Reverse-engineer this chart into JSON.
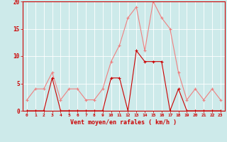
{
  "hours": [
    0,
    1,
    2,
    3,
    4,
    5,
    6,
    7,
    8,
    9,
    10,
    11,
    12,
    13,
    14,
    15,
    16,
    17,
    18,
    19,
    20,
    21,
    22,
    23
  ],
  "wind_mean": [
    0,
    0,
    0,
    6,
    0,
    0,
    0,
    0,
    0,
    0,
    6,
    6,
    0,
    11,
    9,
    9,
    9,
    0,
    4,
    0,
    0,
    0,
    0,
    0
  ],
  "wind_gusts": [
    2,
    4,
    4,
    7,
    2,
    4,
    4,
    2,
    2,
    4,
    9,
    12,
    17,
    19,
    11,
    20,
    17,
    15,
    7,
    2,
    4,
    2,
    4,
    2
  ],
  "bg_color": "#cdeaea",
  "grid_color": "#ffffff",
  "line_mean_color": "#cc0000",
  "line_gust_color": "#f08080",
  "xlabel": "Vent moyen/en rafales ( km/h )",
  "xlabel_color": "#cc0000",
  "tick_color": "#cc0000",
  "spine_color": "#cc0000",
  "ylim": [
    0,
    20
  ],
  "yticks": [
    0,
    5,
    10,
    15,
    20
  ],
  "xticks": [
    0,
    1,
    2,
    3,
    4,
    5,
    6,
    7,
    8,
    9,
    10,
    11,
    12,
    13,
    14,
    15,
    16,
    17,
    18,
    19,
    20,
    21,
    22,
    23
  ]
}
